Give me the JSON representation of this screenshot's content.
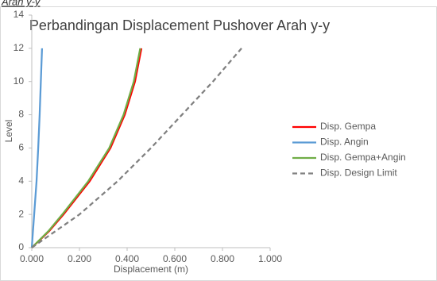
{
  "heading": "Arah y-y",
  "chart_data": {
    "type": "line",
    "title": "Perbandingan Displacement Pushover Arah y-y",
    "x_label": "Displacement (m)",
    "y_label": "Level",
    "xlim": [
      0,
      1
    ],
    "xticks": [
      {
        "value": 0,
        "label": "0.000"
      },
      {
        "value": 0.2,
        "label": "0.200"
      },
      {
        "value": 0.4,
        "label": "0.400"
      },
      {
        "value": 0.6,
        "label": "0.600"
      },
      {
        "value": 0.8,
        "label": "0.800"
      },
      {
        "value": 1,
        "label": "1.000"
      }
    ],
    "ylim": [
      0,
      14
    ],
    "yticks": [
      0,
      2,
      4,
      6,
      8,
      10,
      12,
      14
    ],
    "legend": "right",
    "series": [
      {
        "name": "Disp. Gempa",
        "color": "#ff0000",
        "dash": false,
        "x": [
          0,
          0.073,
          0.133,
          0.243,
          0.33,
          0.39,
          0.433,
          0.46
        ],
        "values": [
          0,
          1,
          2,
          4,
          6,
          8,
          10,
          12
        ]
      },
      {
        "name": "Disp. Angin",
        "color": "#5b9bd5",
        "dash": false,
        "x": [
          0,
          0.005,
          0.01,
          0.02,
          0.027,
          0.033,
          0.038,
          0.043
        ],
        "values": [
          0,
          1,
          2,
          4,
          6,
          8,
          10,
          12
        ]
      },
      {
        "name": "Disp. Gempa+Angin",
        "color": "#70ad47",
        "dash": false,
        "x": [
          0,
          0.07,
          0.128,
          0.237,
          0.325,
          0.385,
          0.428,
          0.455
        ],
        "values": [
          0,
          1,
          2,
          4,
          6,
          8,
          10,
          12
        ]
      },
      {
        "name": "Disp. Design Limit",
        "color": "#808080",
        "dash": true,
        "x": [
          0,
          0.2,
          0.36,
          0.5,
          0.63,
          0.76,
          0.88
        ],
        "values": [
          0,
          2,
          4,
          6,
          8,
          10,
          12
        ]
      }
    ]
  }
}
